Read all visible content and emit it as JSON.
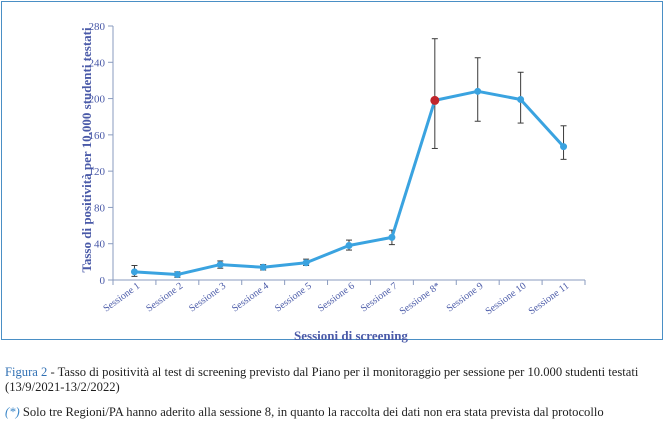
{
  "chart_data": {
    "type": "line",
    "xlabel": "Sessioni di screening",
    "ylabel": "Tasso di positività per 10.000 studenti testati",
    "ylim": [
      0,
      280
    ],
    "yticks": [
      0,
      40,
      80,
      120,
      160,
      200,
      240,
      280
    ],
    "grid": false,
    "categories": [
      "Sessione 1",
      "Sessione 2",
      "Sessione 3",
      "Sessione 4",
      "Sessione 5",
      "Sessione 6",
      "Sessione 7",
      "Sessione 8*",
      "Sessione 9",
      "Sessione 10",
      "Sessione 11"
    ],
    "series": [
      {
        "values": [
          9,
          6,
          17,
          14,
          19,
          38,
          47,
          198,
          208,
          199,
          147
        ],
        "err_low": [
          4,
          3,
          13,
          11,
          16,
          33,
          39,
          145,
          175,
          173,
          133
        ],
        "err_high": [
          16,
          9,
          21,
          17,
          23,
          44,
          55,
          266,
          245,
          229,
          170
        ],
        "highlight_index": 7
      }
    ],
    "colors": {
      "line": "#3aa3e0",
      "highlight": "#c0262d",
      "axis": "#8a9bbf",
      "text": "#4a5aa8",
      "error": "#3a3a3a"
    }
  },
  "caption": {
    "label": "Figura 2",
    "text": " - Tasso di positività al test di screening previsto dal Piano per il monitoraggio per sessione per 10.000 studenti testati (13/9/2021-13/2/2022)"
  },
  "note": {
    "mark": "(*)",
    "text": " Solo tre Regioni/PA hanno aderito alla sessione 8, in quanto la raccolta dei dati non era stata prevista dal protocollo"
  }
}
